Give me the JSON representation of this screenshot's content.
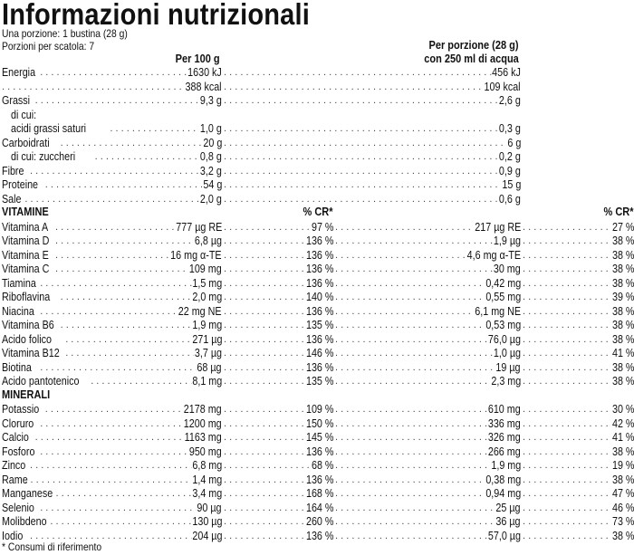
{
  "title": "Informazioni nutrizionali",
  "serving_line": "Una porzione: 1 bustina (28 g)",
  "servings_line": "Porzioni per scatola: 7",
  "headers": {
    "per100": "Per 100 g",
    "per_portion_1": "Per porzione (28 g)",
    "per_portion_2": "con 250 ml di acqua",
    "cr": "% CR*"
  },
  "macros": [
    {
      "label": "Energia",
      "v100": "1630 kJ",
      "vpor": "456 kJ"
    },
    {
      "label": "",
      "v100": "388 kcal",
      "vpor": "109 kcal"
    },
    {
      "label": "Grassi",
      "v100": "9,3 g",
      "vpor": "2,6 g"
    },
    {
      "label": "di cui:",
      "v100": "",
      "vpor": ""
    },
    {
      "label": "acidi grassi saturi",
      "v100": "1,0 g",
      "vpor": "0,3 g"
    },
    {
      "label": "Carboidrati",
      "v100": "20 g",
      "vpor": "6 g"
    },
    {
      "label": "di cui: zuccheri",
      "v100": "0,8 g",
      "vpor": "0,2 g"
    },
    {
      "label": "Fibre",
      "v100": "3,2 g",
      "vpor": "0,9 g"
    },
    {
      "label": "Proteine",
      "v100": "54 g",
      "vpor": "15 g"
    },
    {
      "label": "Sale",
      "v100": "2,0 g",
      "vpor": "0,6 g"
    }
  ],
  "vitamins_title": "VITAMINE",
  "vitamins": [
    {
      "label": "Vitamina A",
      "v100": "777 µg RE",
      "cr100": "97 %",
      "vpor": "217 µg RE",
      "crpor": "27 %"
    },
    {
      "label": "Vitamina D",
      "v100": "6,8 µg",
      "cr100": "136 %",
      "vpor": "1,9 µg",
      "crpor": "38 %"
    },
    {
      "label": "Vitamina E",
      "v100": "16 mg α-TE",
      "cr100": "136 %",
      "vpor": "4,6 mg α-TE",
      "crpor": "38 %"
    },
    {
      "label": "Vitamina C",
      "v100": "109 mg",
      "cr100": "136 %",
      "vpor": "30 mg",
      "crpor": "38 %"
    },
    {
      "label": "Tiamina",
      "v100": "1,5 mg",
      "cr100": "136 %",
      "vpor": "0,42 mg",
      "crpor": "38 %"
    },
    {
      "label": "Riboflavina",
      "v100": "2,0 mg",
      "cr100": "140 %",
      "vpor": "0,55 mg",
      "crpor": "39 %"
    },
    {
      "label": "Niacina",
      "v100": "22 mg NE",
      "cr100": "136 %",
      "vpor": "6,1 mg NE",
      "crpor": "38 %"
    },
    {
      "label": "Vitamina B6",
      "v100": "1,9 mg",
      "cr100": "135 %",
      "vpor": "0,53 mg",
      "crpor": "38 %"
    },
    {
      "label": "Acido folico",
      "v100": "271 µg",
      "cr100": "136 %",
      "vpor": "76,0 µg",
      "crpor": "38 %"
    },
    {
      "label": "Vitamina B12",
      "v100": "3,7 µg",
      "cr100": "146 %",
      "vpor": "1,0 µg",
      "crpor": "41 %"
    },
    {
      "label": "Biotina",
      "v100": "68 µg",
      "cr100": "136 %",
      "vpor": "19 µg",
      "crpor": "38 %"
    },
    {
      "label": "Acido pantotenico",
      "v100": "8,1 mg",
      "cr100": "135 %",
      "vpor": "2,3 mg",
      "crpor": "38 %"
    }
  ],
  "minerals_title": "MINERALI",
  "minerals": [
    {
      "label": "Potassio",
      "v100": "2178 mg",
      "cr100": "109 %",
      "vpor": "610 mg",
      "crpor": "30 %"
    },
    {
      "label": "Cloruro",
      "v100": "1200 mg",
      "cr100": "150 %",
      "vpor": "336 mg",
      "crpor": "42 %"
    },
    {
      "label": "Calcio",
      "v100": "1163 mg",
      "cr100": "145 %",
      "vpor": "326 mg",
      "crpor": "41 %"
    },
    {
      "label": "Fosforo",
      "v100": "950 mg",
      "cr100": "136 %",
      "vpor": "266 mg",
      "crpor": "38 %"
    },
    {
      "label": "Zinco",
      "v100": "6,8 mg",
      "cr100": "68 %",
      "vpor": "1,9 mg",
      "crpor": "19 %"
    },
    {
      "label": "Rame",
      "v100": "1,4 mg",
      "cr100": "136 %",
      "vpor": "0,38 mg",
      "crpor": "38 %"
    },
    {
      "label": "Manganese",
      "v100": "3,4 mg",
      "cr100": "168 %",
      "vpor": "0,94 mg",
      "crpor": "47 %"
    },
    {
      "label": "Selenio",
      "v100": "90 µg",
      "cr100": "164 %",
      "vpor": "25 µg",
      "crpor": "46 %"
    },
    {
      "label": "Molibdeno",
      "v100": "130 µg",
      "cr100": "260 %",
      "vpor": "36 µg",
      "crpor": "73 %"
    },
    {
      "label": "Iodio",
      "v100": "204 µg",
      "cr100": "136 %",
      "vpor": "57,0 µg",
      "crpor": "38 %"
    }
  ],
  "footnote": "* Consumi di riferimento"
}
